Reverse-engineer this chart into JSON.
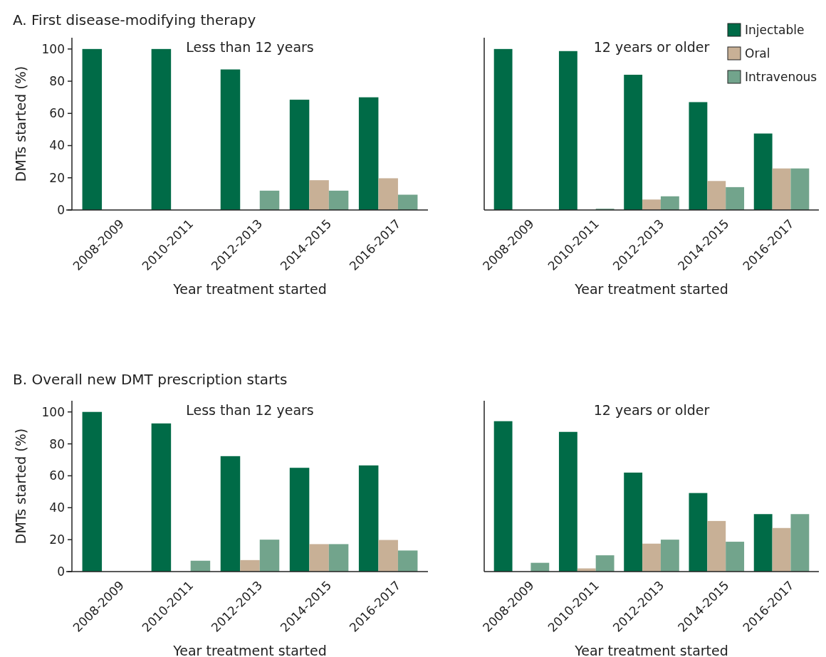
{
  "chart_data": [
    {
      "type": "bar",
      "title": "A. First disease-modifying therapy",
      "subtitle": "Less than 12 years",
      "xlabel": "Year treatment started",
      "ylabel": "DMTs started (%)",
      "categories": [
        "2008-2009",
        "2010-2011",
        "2012-2013",
        "2014-2015",
        "2016-2017"
      ],
      "ylim": [
        0,
        107
      ],
      "yticks": [
        0,
        20,
        40,
        60,
        80,
        100
      ],
      "grid": false,
      "legend": false,
      "series": [
        {
          "color": "#006b47",
          "values": [
            100,
            100,
            87.3,
            68.5,
            70
          ]
        },
        {
          "color": "#c8b096",
          "values": [
            0,
            0,
            0,
            18.5,
            19.7
          ]
        },
        {
          "color": "#72a48c",
          "values": [
            0,
            0,
            12,
            12,
            9.5
          ]
        }
      ]
    },
    {
      "type": "bar",
      "subtitle": "12 years or older",
      "xlabel": "Year treatment started",
      "categories": [
        "2008-2009",
        "2010-2011",
        "2012-2013",
        "2014-2015",
        "2016-2017"
      ],
      "ylim": [
        0,
        107
      ],
      "yticks": [
        0,
        20,
        40,
        60,
        80,
        100
      ],
      "tick_labels": "x",
      "grid": false,
      "legend": "top right",
      "series": [
        {
          "name": "Injectable",
          "color": "#006b47",
          "values": [
            100,
            98.7,
            84,
            67,
            47.5
          ]
        },
        {
          "name": "Oral",
          "color": "#c8b096",
          "values": [
            0,
            0,
            6.5,
            18,
            25.8
          ]
        },
        {
          "name": "Intravenous",
          "color": "#72a48c",
          "values": [
            0,
            0.8,
            8.5,
            14.2,
            25.8
          ]
        }
      ]
    },
    {
      "type": "bar",
      "title": "B. Overall new DMT prescription starts",
      "subtitle": "Less than 12 years",
      "xlabel": "Year treatment started",
      "ylabel": "DMTs started (%)",
      "categories": [
        "2008-2009",
        "2010-2011",
        "2012-2013",
        "2014-2015",
        "2016-2017"
      ],
      "ylim": [
        0,
        107
      ],
      "yticks": [
        0,
        20,
        40,
        60,
        80,
        100
      ],
      "grid": false,
      "legend": false,
      "series": [
        {
          "color": "#006b47",
          "values": [
            100,
            92.8,
            72.3,
            65,
            66.5
          ]
        },
        {
          "color": "#c8b096",
          "values": [
            0,
            0,
            7.2,
            17.2,
            19.8
          ]
        },
        {
          "color": "#72a48c",
          "values": [
            0,
            6.8,
            20,
            17.2,
            13.2
          ]
        }
      ]
    },
    {
      "type": "bar",
      "subtitle": "12 years or older",
      "xlabel": "Year treatment started",
      "categories": [
        "2008-2009",
        "2010-2011",
        "2012-2013",
        "2014-2015",
        "2016-2017"
      ],
      "ylim": [
        0,
        107
      ],
      "yticks": [
        0,
        20,
        40,
        60,
        80,
        100
      ],
      "tick_labels": "x",
      "grid": false,
      "legend": false,
      "series": [
        {
          "color": "#006b47",
          "values": [
            94.2,
            87.5,
            62,
            49.2,
            36
          ]
        },
        {
          "color": "#c8b096",
          "values": [
            0,
            2,
            17.5,
            31.7,
            27.3
          ]
        },
        {
          "color": "#72a48c",
          "values": [
            5.5,
            10.2,
            20,
            18.7,
            36
          ]
        }
      ]
    }
  ]
}
